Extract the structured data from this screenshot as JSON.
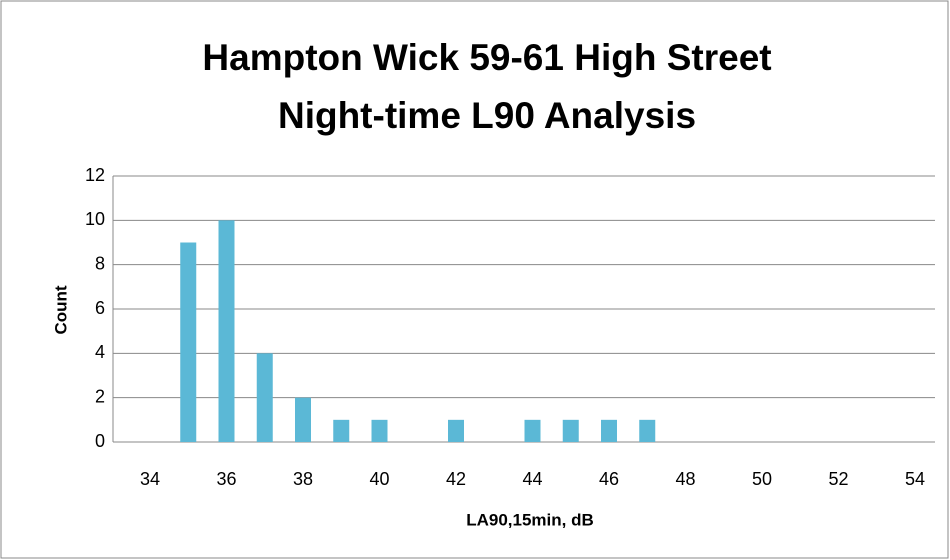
{
  "chart_data": {
    "type": "bar",
    "title": [
      "Hampton Wick 59-61 High Street",
      "Night-time L90 Analysis"
    ],
    "x_label": "LA90,15min, dB",
    "y_label": "Count",
    "x": [
      35,
      36,
      37,
      38,
      39,
      40,
      42,
      44,
      45,
      46,
      47
    ],
    "values": [
      9,
      10,
      4,
      2,
      1,
      1,
      1,
      1,
      1,
      1,
      1
    ],
    "color": "#5bb8d6",
    "xlim": [
      34,
      54
    ],
    "xticks": [
      34,
      36,
      38,
      40,
      42,
      44,
      46,
      48,
      50,
      52,
      54
    ],
    "ylim": [
      0,
      12
    ],
    "yticks": [
      0,
      2,
      4,
      6,
      8,
      10,
      12
    ],
    "grid": true
  }
}
